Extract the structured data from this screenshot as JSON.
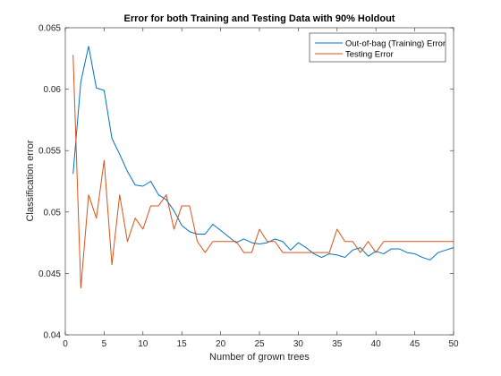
{
  "chart_data": {
    "type": "line",
    "title": "Error for both Training and Testing Data with 90% Holdout",
    "xlabel": "Number of grown trees",
    "ylabel": "Classification error",
    "xlim": [
      0,
      50
    ],
    "ylim": [
      0.04,
      0.065
    ],
    "xticks": [
      0,
      5,
      10,
      15,
      20,
      25,
      30,
      35,
      40,
      45,
      50
    ],
    "yticks": [
      0.04,
      0.045,
      0.05,
      0.055,
      0.06,
      0.065
    ],
    "xtick_labels": [
      "0",
      "5",
      "10",
      "15",
      "20",
      "25",
      "30",
      "35",
      "40",
      "45",
      "50"
    ],
    "ytick_labels": [
      "0.04",
      "0.045",
      "0.05",
      "0.055",
      "0.06",
      "0.065"
    ],
    "grid": false,
    "legend_position": "top-right",
    "series": [
      {
        "name": "Out-of-bag (Training) Error",
        "color": "#0072bd",
        "x": [
          1,
          2,
          3,
          4,
          5,
          6,
          7,
          8,
          9,
          10,
          11,
          12,
          13,
          14,
          15,
          16,
          17,
          18,
          19,
          20,
          21,
          22,
          23,
          24,
          25,
          26,
          27,
          28,
          29,
          30,
          31,
          32,
          33,
          34,
          35,
          36,
          37,
          38,
          39,
          40,
          41,
          42,
          43,
          44,
          45,
          46,
          47,
          48,
          49,
          50
        ],
        "values": [
          0.0531,
          0.0606,
          0.0635,
          0.0601,
          0.0599,
          0.056,
          0.0547,
          0.0533,
          0.0522,
          0.0521,
          0.0525,
          0.0514,
          0.051,
          0.0501,
          0.0489,
          0.0484,
          0.0482,
          0.0482,
          0.049,
          0.0485,
          0.048,
          0.0475,
          0.0478,
          0.0475,
          0.0474,
          0.0475,
          0.0478,
          0.0476,
          0.0469,
          0.0475,
          0.0471,
          0.0466,
          0.0463,
          0.0466,
          0.0465,
          0.0463,
          0.0469,
          0.0471,
          0.0464,
          0.0468,
          0.0466,
          0.047,
          0.047,
          0.0467,
          0.0466,
          0.0463,
          0.0461,
          0.0467,
          0.0469,
          0.0471
        ]
      },
      {
        "name": "Testing Error",
        "color": "#d95319",
        "x": [
          1,
          2,
          3,
          4,
          5,
          6,
          7,
          8,
          9,
          10,
          11,
          12,
          13,
          14,
          15,
          16,
          17,
          18,
          19,
          20,
          21,
          22,
          23,
          24,
          25,
          26,
          27,
          28,
          29,
          30,
          31,
          32,
          33,
          34,
          35,
          36,
          37,
          38,
          39,
          40,
          41,
          42,
          43,
          44,
          45,
          46,
          47,
          48,
          49,
          50
        ],
        "values": [
          0.0628,
          0.0438,
          0.0514,
          0.0495,
          0.0542,
          0.0457,
          0.0514,
          0.0476,
          0.0495,
          0.0486,
          0.0505,
          0.0505,
          0.0514,
          0.0486,
          0.0505,
          0.0505,
          0.0476,
          0.0467,
          0.0476,
          0.0476,
          0.0476,
          0.0476,
          0.0467,
          0.0467,
          0.0486,
          0.0476,
          0.0476,
          0.0467,
          0.0467,
          0.0467,
          0.0467,
          0.0467,
          0.0467,
          0.0467,
          0.0486,
          0.0476,
          0.0476,
          0.0467,
          0.0476,
          0.0467,
          0.0476,
          0.0476,
          0.0476,
          0.0476,
          0.0476,
          0.0476,
          0.0476,
          0.0476,
          0.0476,
          0.0476
        ]
      }
    ]
  }
}
